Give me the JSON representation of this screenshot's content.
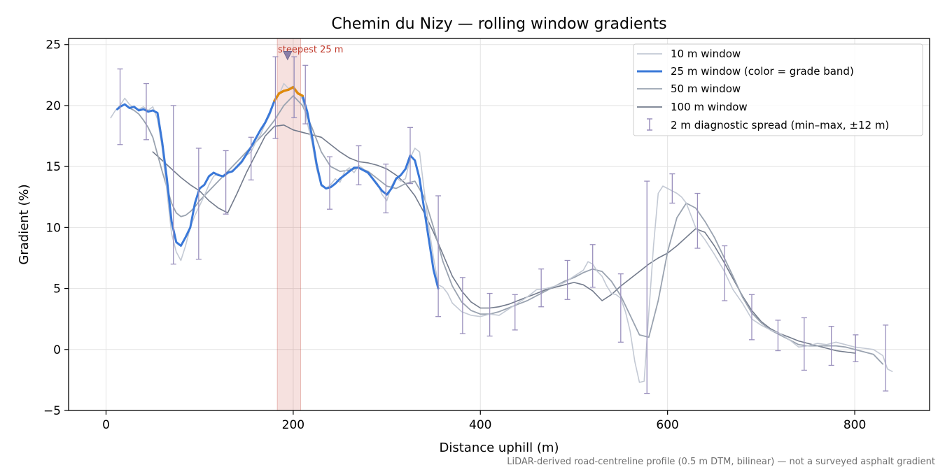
{
  "chart_data": {
    "type": "line",
    "title": "Chemin du Nizy — rolling window gradients",
    "xlabel": "Distance uphill (m)",
    "ylabel": "Gradient (%)",
    "xlim": [
      -40,
      880
    ],
    "ylim": [
      -5,
      25.5
    ],
    "xticks": [
      0,
      200,
      400,
      600,
      800
    ],
    "yticks": [
      -5,
      0,
      5,
      10,
      15,
      20,
      25
    ],
    "grid": true,
    "legend_position": "top-right",
    "footnote": "LiDAR-derived road-centreline profile (0.5 m DTM, bilinear) — not a surveyed asphalt gradient",
    "highlight": {
      "x_start": 183,
      "x_end": 208,
      "marker_x": 194,
      "marker_y": 24.1,
      "label": "steepest 25 m",
      "color": "#c0392b"
    },
    "series": [
      {
        "name": "10 m window",
        "color": "#c3c9d4",
        "x": [
          5,
          10,
          15,
          20,
          25,
          30,
          35,
          40,
          45,
          50,
          55,
          60,
          65,
          70,
          75,
          80,
          85,
          90,
          95,
          100,
          105,
          110,
          115,
          120,
          125,
          130,
          135,
          140,
          145,
          150,
          155,
          160,
          165,
          170,
          175,
          180,
          185,
          190,
          195,
          200,
          205,
          210,
          215,
          220,
          225,
          230,
          235,
          240,
          245,
          250,
          255,
          260,
          265,
          270,
          275,
          280,
          285,
          290,
          295,
          300,
          305,
          310,
          315,
          320,
          325,
          330,
          335,
          340,
          345,
          350,
          355,
          360,
          365,
          370,
          380,
          390,
          400,
          410,
          420,
          430,
          440,
          450,
          460,
          470,
          480,
          490,
          500,
          510,
          515,
          520,
          525,
          530,
          535,
          540,
          545,
          550,
          555,
          560,
          565,
          570,
          575,
          580,
          585,
          590,
          595,
          600,
          605,
          610,
          615,
          620,
          630,
          640,
          650,
          660,
          670,
          680,
          690,
          700,
          710,
          720,
          730,
          740,
          750,
          760,
          770,
          780,
          790,
          800,
          810,
          820,
          830,
          835,
          840
        ],
        "values": [
          19.0,
          19.6,
          20.0,
          20.6,
          20.1,
          19.8,
          19.7,
          19.9,
          19.6,
          19.9,
          18.9,
          16.5,
          13.0,
          9.5,
          8.0,
          7.3,
          8.5,
          10.0,
          11.0,
          11.8,
          12.6,
          13.5,
          14.2,
          14.4,
          14.1,
          14.4,
          14.7,
          14.9,
          15.3,
          15.9,
          16.2,
          17.0,
          17.6,
          18.5,
          19.2,
          20.3,
          20.9,
          21.8,
          21.4,
          21.6,
          21.1,
          20.5,
          18.6,
          17.0,
          14.8,
          13.4,
          13.2,
          13.5,
          14.0,
          13.7,
          14.6,
          14.9,
          14.5,
          15.1,
          14.8,
          14.4,
          14.0,
          13.6,
          12.7,
          12.2,
          13.4,
          14.1,
          13.8,
          14.0,
          15.7,
          16.5,
          16.2,
          13.0,
          10.0,
          7.5,
          5.3,
          5.1,
          4.6,
          3.8,
          3.1,
          2.8,
          2.7,
          2.9,
          2.8,
          3.3,
          3.8,
          4.3,
          4.9,
          5.0,
          5.2,
          5.5,
          6.0,
          6.5,
          7.2,
          7.0,
          6.4,
          6.0,
          5.2,
          4.6,
          4.5,
          4.2,
          3.1,
          1.5,
          -1.0,
          -2.7,
          -2.6,
          3.0,
          8.5,
          12.8,
          13.4,
          13.2,
          13.0,
          12.8,
          12.5,
          12.0,
          10.0,
          9.0,
          7.8,
          6.5,
          4.9,
          3.8,
          2.5,
          2.0,
          1.6,
          1.3,
          0.8,
          0.2,
          0.3,
          0.5,
          0.4,
          0.6,
          0.4,
          0.2,
          0.1,
          0.0,
          -0.5,
          -1.6,
          -1.8
        ]
      },
      {
        "name": "25 m window (color = grade band)",
        "color": "#3a78d8",
        "band_color": "#e08a0b",
        "band_threshold": 20,
        "x": [
          12,
          15,
          20,
          25,
          30,
          35,
          40,
          45,
          50,
          55,
          60,
          65,
          70,
          75,
          80,
          85,
          90,
          95,
          100,
          105,
          110,
          115,
          120,
          125,
          130,
          135,
          140,
          145,
          150,
          155,
          160,
          165,
          170,
          175,
          180,
          185,
          190,
          195,
          200,
          205,
          210,
          215,
          220,
          225,
          230,
          235,
          240,
          245,
          250,
          255,
          260,
          265,
          270,
          275,
          280,
          285,
          290,
          295,
          300,
          305,
          310,
          315,
          320,
          325,
          330,
          335,
          340,
          345,
          350,
          355
        ],
        "values": [
          19.7,
          19.9,
          20.1,
          19.8,
          19.9,
          19.6,
          19.7,
          19.5,
          19.6,
          19.4,
          17.0,
          14.0,
          10.5,
          8.8,
          8.5,
          9.2,
          10.0,
          12.0,
          13.2,
          13.5,
          14.2,
          14.5,
          14.3,
          14.2,
          14.5,
          14.6,
          15.0,
          15.4,
          16.0,
          16.6,
          17.3,
          18.0,
          18.6,
          19.4,
          20.4,
          21.0,
          21.2,
          21.3,
          21.5,
          21.0,
          20.8,
          19.5,
          17.5,
          15.2,
          13.5,
          13.2,
          13.3,
          13.6,
          14.0,
          14.3,
          14.6,
          14.9,
          14.9,
          14.7,
          14.5,
          14.0,
          13.5,
          13.0,
          12.7,
          13.2,
          14.0,
          14.3,
          14.8,
          15.9,
          15.5,
          14.0,
          11.5,
          9.0,
          6.5,
          5.0
        ]
      },
      {
        "name": "50 m window",
        "color": "#9aa3b0",
        "x": [
          25,
          30,
          35,
          40,
          45,
          50,
          55,
          60,
          65,
          70,
          75,
          80,
          85,
          90,
          95,
          100,
          110,
          120,
          130,
          140,
          150,
          160,
          170,
          180,
          190,
          200,
          210,
          220,
          230,
          240,
          250,
          260,
          270,
          280,
          290,
          300,
          310,
          320,
          330,
          340,
          350,
          360,
          370,
          380,
          390,
          400,
          410,
          420,
          430,
          440,
          450,
          460,
          470,
          480,
          490,
          500,
          510,
          520,
          530,
          540,
          550,
          560,
          570,
          580,
          590,
          600,
          610,
          620,
          630,
          640,
          650,
          660,
          670,
          680,
          690,
          700,
          710,
          720,
          730,
          740,
          750,
          760,
          770,
          780,
          790,
          800,
          810,
          820,
          830
        ],
        "values": [
          19.8,
          19.6,
          19.3,
          18.8,
          18.2,
          17.4,
          16.0,
          14.6,
          13.3,
          12.0,
          11.2,
          10.9,
          11.0,
          11.3,
          11.7,
          12.2,
          13.0,
          13.8,
          14.6,
          15.4,
          16.2,
          17.0,
          17.8,
          18.8,
          20.0,
          20.8,
          20.0,
          18.2,
          16.2,
          15.0,
          14.6,
          14.7,
          14.9,
          14.6,
          14.0,
          13.4,
          13.2,
          13.6,
          13.8,
          12.5,
          10.0,
          7.2,
          5.2,
          3.9,
          3.2,
          2.9,
          2.9,
          3.1,
          3.4,
          3.7,
          4.0,
          4.4,
          4.8,
          5.2,
          5.6,
          5.9,
          6.3,
          6.6,
          6.4,
          5.6,
          4.4,
          2.8,
          1.2,
          1.0,
          4.0,
          8.0,
          10.8,
          12.0,
          11.6,
          10.5,
          9.2,
          7.6,
          6.0,
          4.3,
          3.0,
          2.2,
          1.6,
          1.2,
          0.8,
          0.4,
          0.3,
          0.3,
          0.3,
          0.3,
          0.2,
          0.0,
          -0.2,
          -0.4,
          -1.2
        ]
      },
      {
        "name": "100 m window",
        "color": "#737b8c",
        "x": [
          50,
          60,
          70,
          80,
          90,
          100,
          110,
          120,
          130,
          140,
          150,
          160,
          170,
          180,
          190,
          200,
          210,
          220,
          230,
          240,
          250,
          260,
          270,
          280,
          290,
          300,
          310,
          320,
          330,
          340,
          350,
          360,
          370,
          380,
          390,
          400,
          410,
          420,
          430,
          440,
          450,
          460,
          470,
          480,
          490,
          500,
          510,
          520,
          530,
          540,
          550,
          560,
          570,
          580,
          590,
          600,
          610,
          620,
          630,
          640,
          650,
          660,
          670,
          680,
          690,
          700,
          710,
          720,
          730,
          740,
          750,
          760,
          770,
          780,
          790,
          800
        ],
        "values": [
          16.2,
          15.5,
          14.8,
          14.1,
          13.5,
          13.0,
          12.2,
          11.6,
          11.2,
          12.8,
          14.5,
          16.0,
          17.5,
          18.3,
          18.4,
          18.0,
          17.8,
          17.6,
          17.4,
          16.8,
          16.2,
          15.7,
          15.4,
          15.3,
          15.1,
          14.8,
          14.3,
          13.6,
          12.6,
          11.2,
          9.6,
          7.8,
          6.0,
          4.8,
          3.9,
          3.4,
          3.4,
          3.5,
          3.7,
          4.0,
          4.3,
          4.6,
          4.9,
          5.1,
          5.3,
          5.5,
          5.3,
          4.8,
          4.0,
          4.5,
          5.2,
          5.8,
          6.4,
          7.0,
          7.5,
          7.9,
          8.5,
          9.2,
          9.9,
          9.6,
          8.5,
          7.2,
          5.8,
          4.4,
          3.2,
          2.3,
          1.7,
          1.3,
          1.0,
          0.7,
          0.5,
          0.3,
          0.1,
          -0.1,
          -0.2,
          -0.3
        ]
      }
    ],
    "error_bars": {
      "name": "2 m diagnostic spread (min–max, ±12 m)",
      "color": "#9a90bd",
      "x": [
        15,
        43,
        72,
        99,
        128,
        155,
        181,
        201,
        213,
        239,
        270,
        299,
        325,
        355,
        381,
        410,
        437,
        465,
        493,
        520,
        550,
        578,
        605,
        632,
        661,
        690,
        718,
        746,
        775,
        801,
        833
      ],
      "low": [
        16.8,
        17.2,
        7.0,
        7.4,
        11.1,
        13.9,
        17.3,
        19.0,
        18.5,
        11.5,
        13.5,
        11.2,
        13.6,
        2.7,
        1.3,
        1.1,
        1.6,
        3.5,
        4.1,
        5.1,
        0.6,
        -3.6,
        12.0,
        8.3,
        4.0,
        0.8,
        -0.1,
        -1.7,
        -1.3,
        -1.0,
        -3.4
      ],
      "high": [
        23.0,
        21.8,
        20.0,
        16.5,
        16.3,
        17.4,
        24.0,
        24.0,
        23.3,
        15.8,
        16.7,
        15.2,
        18.2,
        12.6,
        5.9,
        4.6,
        4.5,
        6.6,
        7.3,
        8.6,
        6.2,
        13.8,
        14.4,
        12.8,
        8.5,
        4.5,
        2.4,
        2.6,
        1.9,
        1.2,
        2.0
      ]
    }
  }
}
